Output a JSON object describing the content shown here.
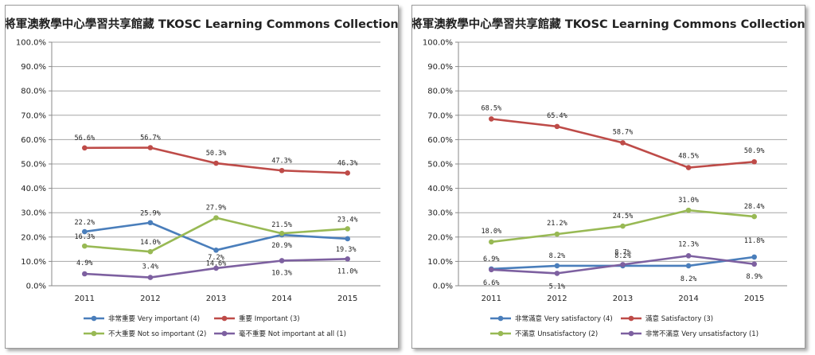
{
  "chart_data": [
    {
      "type": "line",
      "title": "將軍澳教學中心學習共享館藏  TKOSC Learning Commons Collection",
      "categories": [
        "2011",
        "2012",
        "2013",
        "2014",
        "2015"
      ],
      "ylim": [
        0,
        100
      ],
      "yticks": [
        "0.0%",
        "10.0%",
        "20.0%",
        "30.0%",
        "40.0%",
        "50.0%",
        "60.0%",
        "70.0%",
        "80.0%",
        "90.0%",
        "100.0%"
      ],
      "grid": true,
      "legend": "bottom",
      "series": [
        {
          "name": "非常重要 Very important (4)",
          "color": "#4a7ebb",
          "values": [
            22.2,
            25.9,
            14.6,
            20.9,
            19.3
          ],
          "labels": [
            "22.2%",
            "25.9%",
            "14.6%",
            "20.9%",
            "19.3%"
          ]
        },
        {
          "name": "重要 Important (3)",
          "color": "#be4b48",
          "values": [
            56.6,
            56.7,
            50.3,
            47.3,
            46.3
          ],
          "labels": [
            "56.6%",
            "56.7%",
            "50.3%",
            "47.3%",
            "46.3%"
          ]
        },
        {
          "name": "不大重要 Not so important (2)",
          "color": "#98b954",
          "values": [
            16.3,
            14.0,
            27.9,
            21.5,
            23.4
          ],
          "labels": [
            "16.3%",
            "14.0%",
            "27.9%",
            "21.5%",
            "23.4%"
          ]
        },
        {
          "name": "毫不重要 Not important at all (1)",
          "color": "#7d60a0",
          "values": [
            4.9,
            3.4,
            7.2,
            10.3,
            11.0
          ],
          "labels": [
            "4.9%",
            "3.4%",
            "7.2%",
            "10.3%",
            "11.0%"
          ]
        }
      ]
    },
    {
      "type": "line",
      "title": "將軍澳教學中心學習共享館藏  TKOSC Learning Commons Collection",
      "categories": [
        "2011",
        "2012",
        "2013",
        "2014",
        "2015"
      ],
      "ylim": [
        0,
        100
      ],
      "yticks": [
        "0.0%",
        "10.0%",
        "20.0%",
        "30.0%",
        "40.0%",
        "50.0%",
        "60.0%",
        "70.0%",
        "80.0%",
        "90.0%",
        "100.0%"
      ],
      "grid": true,
      "legend": "bottom",
      "series": [
        {
          "name": "非常滿意  Very satisfactory (4)",
          "color": "#4a7ebb",
          "values": [
            6.9,
            8.2,
            8.2,
            8.2,
            11.8
          ],
          "labels": [
            "6.9%",
            "8.2%",
            "8.2%",
            "8.2%",
            "11.8%"
          ]
        },
        {
          "name": "滿意 Satisfactory (3)",
          "color": "#be4b48",
          "values": [
            68.5,
            65.4,
            58.7,
            48.5,
            50.9
          ],
          "labels": [
            "68.5%",
            "65.4%",
            "58.7%",
            "48.5%",
            "50.9%"
          ]
        },
        {
          "name": "不滿意  Unsatisfactory (2)",
          "color": "#98b954",
          "values": [
            18.0,
            21.2,
            24.5,
            31.0,
            28.4
          ],
          "labels": [
            "18.0%",
            "21.2%",
            "24.5%",
            "31.0%",
            "28.4%"
          ]
        },
        {
          "name": "非常不滿意  Very unsatisfactory (1)",
          "color": "#7d60a0",
          "values": [
            6.6,
            5.1,
            8.7,
            12.3,
            8.9
          ],
          "labels": [
            "6.6%",
            "5.1%",
            "8.7%",
            "12.3%",
            "8.9%"
          ]
        }
      ]
    }
  ]
}
